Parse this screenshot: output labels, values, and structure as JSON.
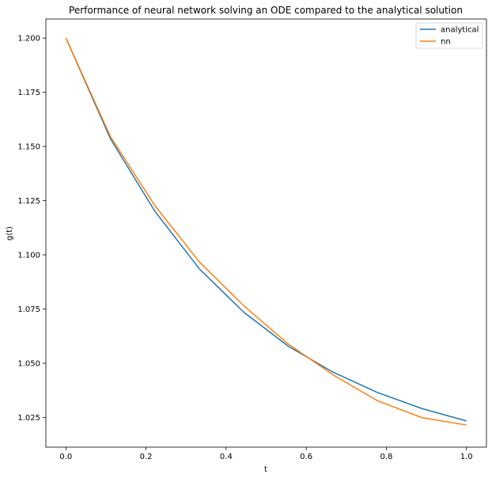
{
  "chart_data": {
    "type": "line",
    "title": "Performance of neural network solving an ODE compared to the analytical solution",
    "xlabel": "t",
    "ylabel": "g(t)",
    "xlim": [
      -0.05,
      1.05
    ],
    "ylim": [
      1.0113,
      1.2088
    ],
    "xticks": [
      0.0,
      0.2,
      0.4,
      0.6,
      0.8,
      1.0
    ],
    "xtick_labels": [
      "0.0",
      "0.2",
      "0.4",
      "0.6",
      "0.8",
      "1.0"
    ],
    "yticks": [
      1.025,
      1.05,
      1.075,
      1.1,
      1.125,
      1.15,
      1.175,
      1.2
    ],
    "ytick_labels": [
      "1.025",
      "1.050",
      "1.075",
      "1.100",
      "1.125",
      "1.150",
      "1.175",
      "1.200"
    ],
    "grid": false,
    "legend_position": "top-right",
    "x": [
      0.0,
      0.1111,
      0.2222,
      0.3333,
      0.4444,
      0.5556,
      0.6667,
      0.7778,
      0.8889,
      1.0
    ],
    "series": [
      {
        "name": "analytical",
        "color": "#1f77b4",
        "values": [
          1.2,
          1.1536,
          1.1201,
          1.0935,
          1.0735,
          1.0578,
          1.0459,
          1.0365,
          1.0291,
          1.0234
        ]
      },
      {
        "name": "nn",
        "color": "#ff7f0e",
        "values": [
          1.2,
          1.1546,
          1.1227,
          1.0967,
          1.0765,
          1.0588,
          1.0447,
          1.0327,
          1.0249,
          1.0215
        ]
      }
    ]
  }
}
